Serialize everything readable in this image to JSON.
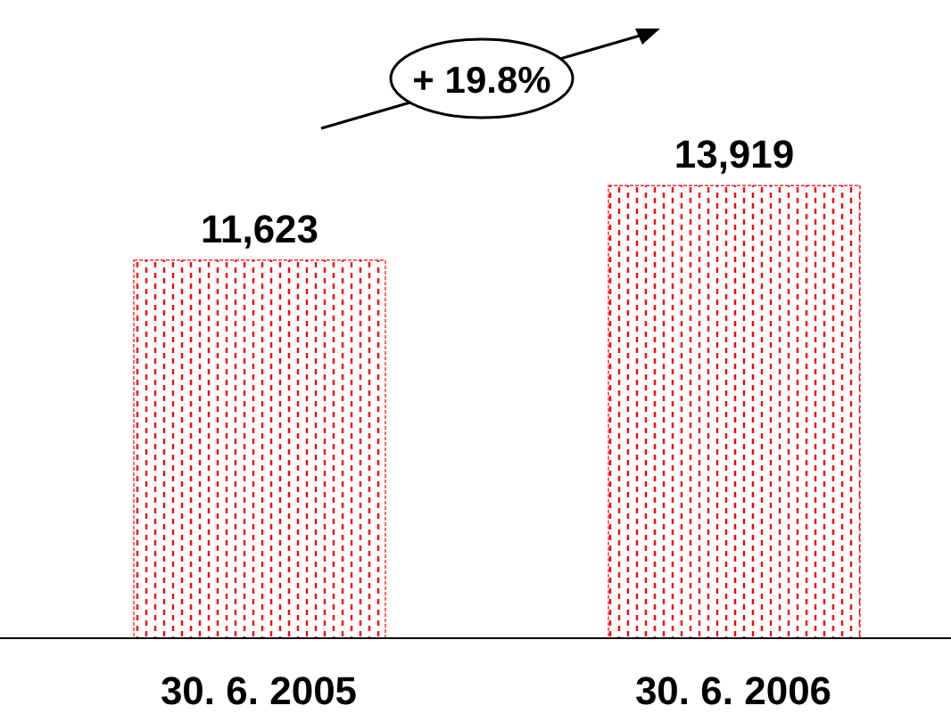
{
  "chart_data": {
    "type": "bar",
    "categories": [
      "30. 6. 2005",
      "30. 6. 2006"
    ],
    "values": [
      11623,
      13919
    ],
    "color": "#ff0000",
    "data_labels": true,
    "value_labels": [
      "11,623",
      "13,919"
    ],
    "annotations": [
      "+ 19.8%"
    ]
  }
}
